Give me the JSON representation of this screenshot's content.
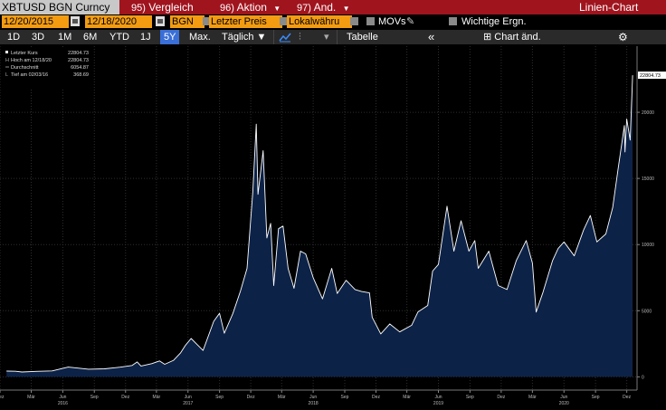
{
  "toolbar": {
    "ticker": "XBTUSD BGN Curncy",
    "buttons": [
      {
        "num": "95)",
        "label": "Vergleich",
        "dropdown": false
      },
      {
        "num": "96)",
        "label": "Aktion",
        "dropdown": true
      },
      {
        "num": "97)",
        "label": "And.",
        "dropdown": true
      }
    ],
    "view_title": "Linien-Chart"
  },
  "params": {
    "start_date": "12/20/2015",
    "end_date": "12/18/2020",
    "source": "BGN",
    "price_type": "Letzter Preis",
    "currency": "Lokalwähru",
    "movs_label": "MOVs",
    "events_label": "Wichtige Ergn."
  },
  "ranges": {
    "items": [
      "1D",
      "3D",
      "1M",
      "6M",
      "YTD",
      "1J",
      "5Y",
      "Max."
    ],
    "selected": "5Y",
    "frequency": "Täglich",
    "table_label": "Tabelle",
    "chart_edit_label": "Chart änd."
  },
  "legend": {
    "rows": [
      {
        "label": "Letzter Kurs",
        "value": "22804.73"
      },
      {
        "label": "Hoch am 12/18/20",
        "value": "22804.73"
      },
      {
        "label": "Durchschnitt",
        "value": "6054.87"
      },
      {
        "label": "Tief am 02/03/16",
        "value": "368.69"
      }
    ]
  },
  "colors": {
    "background": "#000000",
    "line": "#ffffff",
    "area_fill": "#0d2247",
    "toolbar_red": "#a0141e",
    "field_orange": "#f39c12",
    "selected_blue": "#3a6fd8",
    "grid": "#2e2e2e"
  },
  "chart_data": {
    "type": "area",
    "title": "",
    "xlabel": "",
    "ylabel": "",
    "last_value_label": "22804.73",
    "ylim": [
      -1000,
      25000
    ],
    "y_ticks": [
      0,
      5000,
      10000,
      15000,
      20000
    ],
    "x_ticks": [
      {
        "date": "2015-12-01",
        "label": "Dez"
      },
      {
        "date": "2016-03-01",
        "label": "Mär"
      },
      {
        "date": "2016-06-01",
        "label": "Jun"
      },
      {
        "date": "2016-09-01",
        "label": "Sep"
      },
      {
        "date": "2016-12-01",
        "label": "Dez"
      },
      {
        "date": "2017-03-01",
        "label": "Mär"
      },
      {
        "date": "2017-06-01",
        "label": "Jun"
      },
      {
        "date": "2017-09-01",
        "label": "Sep"
      },
      {
        "date": "2017-12-01",
        "label": "Dez"
      },
      {
        "date": "2018-03-01",
        "label": "Mär"
      },
      {
        "date": "2018-06-01",
        "label": "Jun"
      },
      {
        "date": "2018-09-01",
        "label": "Sep"
      },
      {
        "date": "2018-12-01",
        "label": "Dez"
      },
      {
        "date": "2019-03-01",
        "label": "Mär"
      },
      {
        "date": "2019-06-01",
        "label": "Jun"
      },
      {
        "date": "2019-09-01",
        "label": "Sep"
      },
      {
        "date": "2019-12-01",
        "label": "Dez"
      },
      {
        "date": "2020-03-01",
        "label": "Mär"
      },
      {
        "date": "2020-06-01",
        "label": "Jun"
      },
      {
        "date": "2020-09-01",
        "label": "Sep"
      },
      {
        "date": "2020-12-01",
        "label": "Dez"
      }
    ],
    "year_labels": [
      {
        "date": "2016-06-01",
        "label": "2016"
      },
      {
        "date": "2017-06-01",
        "label": "2017"
      },
      {
        "date": "2018-06-01",
        "label": "2018"
      },
      {
        "date": "2019-06-01",
        "label": "2019"
      },
      {
        "date": "2020-06-01",
        "label": "2020"
      }
    ],
    "grid": true,
    "series": [
      {
        "name": "Letzter Kurs",
        "points": [
          [
            "2015-12-20",
            440
          ],
          [
            "2016-01-15",
            420
          ],
          [
            "2016-02-03",
            369
          ],
          [
            "2016-03-15",
            415
          ],
          [
            "2016-05-01",
            450
          ],
          [
            "2016-06-17",
            740
          ],
          [
            "2016-07-15",
            660
          ],
          [
            "2016-08-15",
            580
          ],
          [
            "2016-10-01",
            610
          ],
          [
            "2016-11-15",
            730
          ],
          [
            "2016-12-20",
            860
          ],
          [
            "2017-01-04",
            1130
          ],
          [
            "2017-01-15",
            820
          ],
          [
            "2017-02-15",
            1000
          ],
          [
            "2017-03-10",
            1200
          ],
          [
            "2017-03-25",
            950
          ],
          [
            "2017-04-20",
            1250
          ],
          [
            "2017-05-10",
            1800
          ],
          [
            "2017-05-25",
            2400
          ],
          [
            "2017-06-10",
            2900
          ],
          [
            "2017-07-15",
            2000
          ],
          [
            "2017-08-15",
            4200
          ],
          [
            "2017-09-01",
            4800
          ],
          [
            "2017-09-15",
            3300
          ],
          [
            "2017-10-10",
            4800
          ],
          [
            "2017-11-01",
            6500
          ],
          [
            "2017-11-20",
            8200
          ],
          [
            "2017-12-07",
            14000
          ],
          [
            "2017-12-17",
            19100
          ],
          [
            "2017-12-22",
            13800
          ],
          [
            "2018-01-06",
            17100
          ],
          [
            "2018-01-17",
            10500
          ],
          [
            "2018-01-28",
            11600
          ],
          [
            "2018-02-06",
            6900
          ],
          [
            "2018-02-20",
            11200
          ],
          [
            "2018-03-05",
            11400
          ],
          [
            "2018-03-20",
            8200
          ],
          [
            "2018-04-06",
            6700
          ],
          [
            "2018-04-25",
            9500
          ],
          [
            "2018-05-10",
            9300
          ],
          [
            "2018-06-01",
            7500
          ],
          [
            "2018-06-28",
            5900
          ],
          [
            "2018-07-25",
            8200
          ],
          [
            "2018-08-10",
            6300
          ],
          [
            "2018-09-05",
            7300
          ],
          [
            "2018-10-01",
            6600
          ],
          [
            "2018-10-20",
            6450
          ],
          [
            "2018-11-12",
            6350
          ],
          [
            "2018-11-20",
            4500
          ],
          [
            "2018-12-15",
            3250
          ],
          [
            "2019-01-10",
            4000
          ],
          [
            "2019-02-08",
            3400
          ],
          [
            "2019-03-15",
            3900
          ],
          [
            "2019-04-02",
            4900
          ],
          [
            "2019-05-01",
            5400
          ],
          [
            "2019-05-15",
            8000
          ],
          [
            "2019-06-01",
            8500
          ],
          [
            "2019-06-26",
            12900
          ],
          [
            "2019-07-16",
            9500
          ],
          [
            "2019-08-06",
            11800
          ],
          [
            "2019-08-29",
            9500
          ],
          [
            "2019-09-15",
            10300
          ],
          [
            "2019-09-25",
            8200
          ],
          [
            "2019-10-26",
            9500
          ],
          [
            "2019-11-22",
            6900
          ],
          [
            "2019-12-18",
            6600
          ],
          [
            "2020-01-14",
            8800
          ],
          [
            "2020-02-12",
            10300
          ],
          [
            "2020-03-01",
            8600
          ],
          [
            "2020-03-12",
            4900
          ],
          [
            "2020-04-01",
            6400
          ],
          [
            "2020-04-29",
            8800
          ],
          [
            "2020-05-15",
            9700
          ],
          [
            "2020-06-01",
            10200
          ],
          [
            "2020-07-01",
            9150
          ],
          [
            "2020-07-28",
            11100
          ],
          [
            "2020-08-17",
            12200
          ],
          [
            "2020-09-05",
            10200
          ],
          [
            "2020-10-01",
            10800
          ],
          [
            "2020-10-21",
            12800
          ],
          [
            "2020-11-05",
            15600
          ],
          [
            "2020-11-24",
            19000
          ],
          [
            "2020-11-26",
            17000
          ],
          [
            "2020-12-01",
            19500
          ],
          [
            "2020-12-11",
            17900
          ],
          [
            "2020-12-16",
            21300
          ],
          [
            "2020-12-18",
            22804.73
          ]
        ]
      }
    ]
  }
}
